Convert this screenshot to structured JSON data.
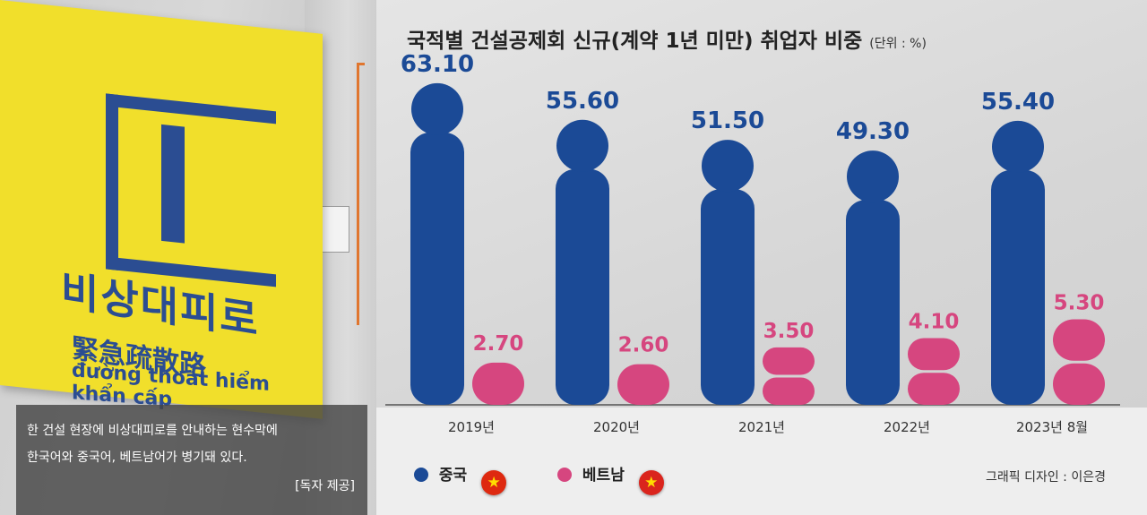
{
  "photo": {
    "banner_title": "비상대피로",
    "banner_chinese": "緊急疏散路",
    "banner_vietnamese": "đường thoát hiểm khẩn cấp",
    "caption_lines": [
      "한 건설 현장에 비상대피로를 안내하는 현수막에",
      "한국어와 중국어, 베트남어가 병기돼 있다."
    ],
    "caption_credit": "[독자 제공]"
  },
  "chart_data": {
    "type": "bar",
    "title": "국적별 건설공제회 신규(계약 1년 미만) 취업자 비중",
    "unit": "(단위 : %)",
    "categories": [
      "2019년",
      "2020년",
      "2021년",
      "2022년",
      "2023년 8월"
    ],
    "series": [
      {
        "name": "중국",
        "values": [
          63.1,
          55.6,
          51.5,
          49.3,
          55.4
        ],
        "labels": [
          "63.10",
          "55.60",
          "51.50",
          "49.30",
          "55.40"
        ],
        "color": "#1b4a96"
      },
      {
        "name": "베트남",
        "values": [
          2.7,
          2.6,
          3.5,
          4.1,
          5.3
        ],
        "labels": [
          "2.70",
          "2.60",
          "3.50",
          "4.10",
          "5.30"
        ],
        "color": "#d6467f"
      }
    ],
    "ylim": [
      0,
      70
    ],
    "grid": false
  },
  "legend": {
    "china_label": "중국",
    "vietnam_label": "베트남",
    "china_flag_icon": "china-flag",
    "vietnam_flag_icon": "vietnam-flag",
    "china_flag_symbol": "★",
    "vietnam_flag_symbol": "★"
  },
  "credit": "그래픽 디자인 : 이은경"
}
